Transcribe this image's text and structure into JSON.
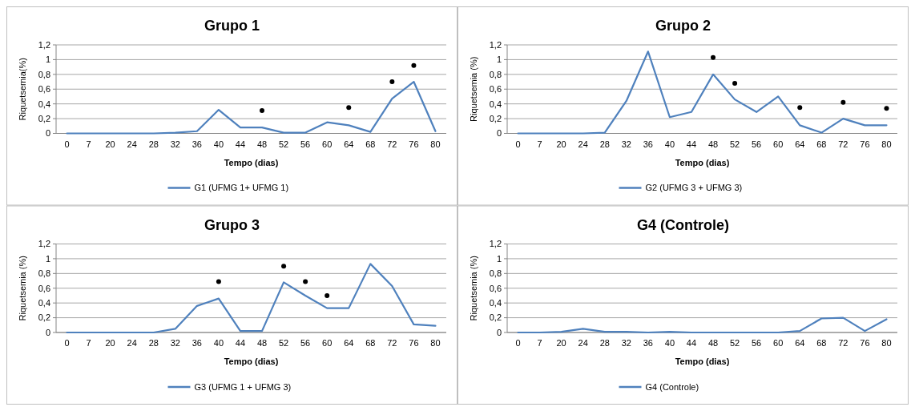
{
  "chart_data": [
    {
      "type": "line",
      "title": "Grupo 1",
      "xlabel": "Tempo (dias)",
      "ylabel": "Riquetsemia(%)",
      "categories": [
        "0",
        "7",
        "20",
        "24",
        "28",
        "32",
        "36",
        "40",
        "44",
        "48",
        "52",
        "56",
        "60",
        "64",
        "68",
        "72",
        "76",
        "80"
      ],
      "series": [
        {
          "name": "G1 (UFMG 1+ UFMG 1)",
          "color": "#4f81bd",
          "values": [
            0,
            0,
            0,
            0,
            0,
            0.01,
            0.03,
            0.32,
            0.08,
            0.08,
            0.01,
            0.01,
            0.15,
            0.11,
            0.02,
            0.47,
            0.7,
            0.03
          ]
        },
        {
          "type": "scatter",
          "color": "#000000",
          "marker": "circle",
          "x": [
            "48",
            "64",
            "72",
            "76"
          ],
          "values": [
            0.31,
            0.35,
            0.7,
            0.92
          ]
        }
      ],
      "ylim": [
        0,
        1.2
      ],
      "yticks": [
        {
          "value": 0,
          "label": "0"
        },
        {
          "value": 0.2,
          "label": "0,2"
        },
        {
          "value": 0.4,
          "label": "0,4"
        },
        {
          "value": 0.6,
          "label": "0,6"
        },
        {
          "value": 0.8,
          "label": "0,8"
        },
        {
          "value": 1,
          "label": "1"
        },
        {
          "value": 1.2,
          "label": "1,2"
        }
      ],
      "grid": "y",
      "legend": "bottom",
      "marker": "none"
    },
    {
      "type": "line",
      "title": "Grupo 2",
      "xlabel": "Tempo (dias)",
      "ylabel": "Riquetsemia (%)",
      "categories": [
        "0",
        "7",
        "20",
        "24",
        "28",
        "32",
        "36",
        "40",
        "44",
        "48",
        "52",
        "56",
        "60",
        "64",
        "68",
        "72",
        "76",
        "80"
      ],
      "series": [
        {
          "name": "G2 (UFMG 3 + UFMG 3)",
          "color": "#4f81bd",
          "values": [
            0,
            0,
            0,
            0,
            0.01,
            0.44,
            1.11,
            0.22,
            0.29,
            0.8,
            0.46,
            0.29,
            0.5,
            0.11,
            0.01,
            0.2,
            0.11,
            0.11
          ]
        },
        {
          "type": "scatter",
          "color": "#000000",
          "marker": "circle",
          "x": [
            "48",
            "52",
            "64",
            "72",
            "80"
          ],
          "values": [
            1.03,
            0.68,
            0.35,
            0.42,
            0.34
          ]
        }
      ],
      "ylim": [
        0,
        1.2
      ],
      "yticks": [
        {
          "value": 0,
          "label": "0"
        },
        {
          "value": 0.2,
          "label": "0,2"
        },
        {
          "value": 0.4,
          "label": "0,4"
        },
        {
          "value": 0.6,
          "label": "0,6"
        },
        {
          "value": 0.8,
          "label": "0,8"
        },
        {
          "value": 1,
          "label": "1"
        },
        {
          "value": 1.2,
          "label": "1,2"
        }
      ],
      "grid": "y",
      "legend": "bottom",
      "marker": "none"
    },
    {
      "type": "line",
      "title": "Grupo 3",
      "xlabel": "Tempo (dias)",
      "ylabel": "Riquetsemia (%)",
      "categories": [
        "0",
        "7",
        "20",
        "24",
        "28",
        "32",
        "36",
        "40",
        "44",
        "48",
        "52",
        "56",
        "60",
        "64",
        "68",
        "72",
        "76",
        "80"
      ],
      "series": [
        {
          "name": "G3 (UFMG 1 + UFMG 3)",
          "color": "#4f81bd",
          "values": [
            0,
            0,
            0,
            0,
            0,
            0.05,
            0.36,
            0.46,
            0.02,
            0.02,
            0.68,
            0.5,
            0.33,
            0.33,
            0.93,
            0.63,
            0.11,
            0.09
          ]
        },
        {
          "type": "scatter",
          "color": "#000000",
          "marker": "circle",
          "x": [
            "40",
            "52",
            "56",
            "60"
          ],
          "values": [
            0.69,
            0.9,
            0.69,
            0.5
          ]
        }
      ],
      "ylim": [
        0,
        1.2
      ],
      "yticks": [
        {
          "value": 0,
          "label": "0"
        },
        {
          "value": 0.2,
          "label": "0,2"
        },
        {
          "value": 0.4,
          "label": "0,4"
        },
        {
          "value": 0.6,
          "label": "0,6"
        },
        {
          "value": 0.8,
          "label": "0,8"
        },
        {
          "value": 1,
          "label": "1"
        },
        {
          "value": 1.2,
          "label": "1,2"
        }
      ],
      "grid": "y",
      "legend": "bottom",
      "marker": "none"
    },
    {
      "type": "line",
      "title": "G4 (Controle)",
      "xlabel": "Tempo (dias)",
      "ylabel": "Riquetsemia (%)",
      "categories": [
        "0",
        "7",
        "20",
        "24",
        "28",
        "32",
        "36",
        "40",
        "44",
        "48",
        "52",
        "56",
        "60",
        "64",
        "68",
        "72",
        "76",
        "80"
      ],
      "series": [
        {
          "name": "G4 (Controle)",
          "color": "#4f81bd",
          "values": [
            0,
            0,
            0.01,
            0.05,
            0.01,
            0.01,
            0,
            0.01,
            0,
            0,
            0,
            0,
            0,
            0.02,
            0.19,
            0.2,
            0.02,
            0.18
          ]
        }
      ],
      "ylim": [
        0,
        1.2
      ],
      "yticks": [
        {
          "value": 0,
          "label": "0"
        },
        {
          "value": 0.2,
          "label": "0,2"
        },
        {
          "value": 0.4,
          "label": "0,4"
        },
        {
          "value": 0.6,
          "label": "0,6"
        },
        {
          "value": 0.8,
          "label": "0,8"
        },
        {
          "value": 1,
          "label": "1"
        },
        {
          "value": 1.2,
          "label": "1,2"
        }
      ],
      "grid": "y",
      "legend": "bottom",
      "marker": "none"
    }
  ]
}
